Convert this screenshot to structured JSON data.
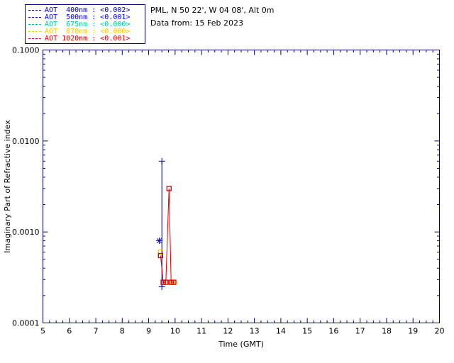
{
  "header": {
    "site": "PML, N 50 22', W 04 08', Alt 0m",
    "date": "Data from: 15 Feb 2023"
  },
  "legend": {
    "border_color": "#000080",
    "items": [
      {
        "label": "AOT  400nm : <0.002>",
        "color": "#000099"
      },
      {
        "label": "AOT  500nm : <0.001>",
        "color": "#0000FF"
      },
      {
        "label": "AOT  675nm : <0.000>",
        "color": "#00CC99"
      },
      {
        "label": "AOT  870nm : <0.000>",
        "color": "#FFC800"
      },
      {
        "label": "AOT 1020nm : <0.001>",
        "color": "#DD0000"
      }
    ]
  },
  "chart_data": {
    "type": "line",
    "title": "",
    "xlabel": "Time (GMT)",
    "ylabel": "Imaginary Part of Refractive index",
    "xlim": [
      5,
      20
    ],
    "x_ticks": [
      5,
      6,
      7,
      8,
      9,
      10,
      11,
      12,
      13,
      14,
      15,
      16,
      17,
      18,
      19,
      20
    ],
    "y_scale": "log",
    "ylim": [
      0.0001,
      0.1
    ],
    "y_ticks": [
      0.0001,
      0.001,
      0.01,
      0.1
    ],
    "y_tick_labels": [
      "0.0001",
      "0.0010",
      "0.0100",
      "0.1000"
    ],
    "axis_color": "#000080",
    "grid": false,
    "legend_position": "top-left",
    "series": [
      {
        "name": "AOT 400nm",
        "color": "#000099",
        "marker": "plus",
        "line": true,
        "x": [
          9.5,
          9.5
        ],
        "y": [
          0.00025,
          0.006
        ]
      },
      {
        "name": "AOT 500nm",
        "color": "#0000FF",
        "marker": "asterisk",
        "line": false,
        "x": [
          9.4
        ],
        "y": [
          0.0008
        ]
      },
      {
        "name": "AOT 675nm",
        "color": "#00CC99",
        "marker": "square",
        "line": false,
        "x": [
          9.55
        ],
        "y": [
          0.00028
        ]
      },
      {
        "name": "AOT 870nm",
        "color": "#FFC800",
        "marker": "square",
        "line": false,
        "x": [
          9.45,
          9.55,
          9.9
        ],
        "y": [
          0.0006,
          0.00028,
          0.00028
        ]
      },
      {
        "name": "AOT 1020nm",
        "color": "#DD0000",
        "marker": "square-open",
        "line": true,
        "x": [
          9.45,
          9.55,
          9.65,
          9.77,
          9.85,
          9.95
        ],
        "y": [
          0.00055,
          0.00028,
          0.00028,
          0.003,
          0.00028,
          0.00028
        ]
      }
    ]
  }
}
